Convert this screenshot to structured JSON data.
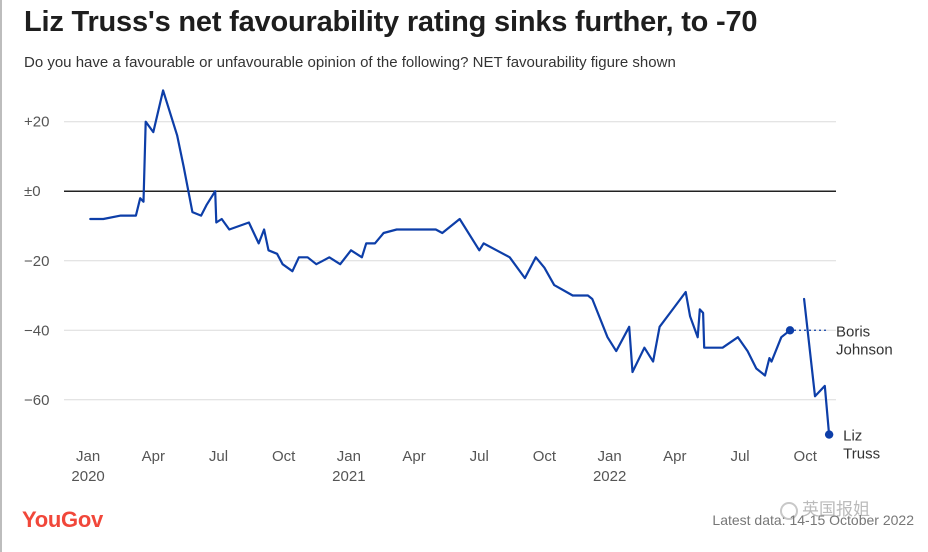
{
  "title": "Liz Truss's net favourability rating sinks further, to -70",
  "subtitle": "Do you have a favourable or unfavourable opinion of the following? NET favourability figure shown",
  "footer": {
    "logo": "YouGov",
    "latest": "Latest data: 14-15 October 2022",
    "watermark": "英国报姐"
  },
  "colors": {
    "series": "#0d3ea8",
    "zero_line": "#222222",
    "grid": "#dcdcdc",
    "brand": "#f1473a"
  },
  "chart_data": {
    "type": "line",
    "title": "Liz Truss's net favourability rating sinks further, to -70",
    "ylim": [
      -73,
      32
    ],
    "yticks": [
      {
        "v": 20,
        "label": "+20"
      },
      {
        "v": 0,
        "label": "±0"
      },
      {
        "v": -20,
        "label": "−20"
      },
      {
        "v": -40,
        "label": "−40"
      },
      {
        "v": -60,
        "label": "−60"
      }
    ],
    "xticks": [
      {
        "m": 0,
        "label": "Jan",
        "year": "2020"
      },
      {
        "m": 3,
        "label": "Apr"
      },
      {
        "m": 6,
        "label": "Jul"
      },
      {
        "m": 9,
        "label": "Oct"
      },
      {
        "m": 12,
        "label": "Jan",
        "year": "2021"
      },
      {
        "m": 15,
        "label": "Apr"
      },
      {
        "m": 18,
        "label": "Jul"
      },
      {
        "m": 21,
        "label": "Oct"
      },
      {
        "m": 24,
        "label": "Jan",
        "year": "2022"
      },
      {
        "m": 27,
        "label": "Apr"
      },
      {
        "m": 30,
        "label": "Jul"
      },
      {
        "m": 33,
        "label": "Oct"
      }
    ],
    "xlim": [
      -1.2,
      34.6
    ],
    "grid": true,
    "series": [
      {
        "name": "Boris Johnson",
        "points": [
          [
            0.1,
            -8
          ],
          [
            0.7,
            -8
          ],
          [
            1.5,
            -7
          ],
          [
            2.2,
            -7
          ],
          [
            2.4,
            -2
          ],
          [
            2.55,
            -3
          ],
          [
            2.65,
            20
          ],
          [
            3.0,
            17
          ],
          [
            3.45,
            29
          ],
          [
            4.1,
            16
          ],
          [
            4.4,
            7
          ],
          [
            4.8,
            -6
          ],
          [
            5.2,
            -7
          ],
          [
            5.45,
            -4
          ],
          [
            5.85,
            0
          ],
          [
            5.9,
            -9
          ],
          [
            6.15,
            -8
          ],
          [
            6.5,
            -11
          ],
          [
            7.4,
            -9
          ],
          [
            7.85,
            -15
          ],
          [
            8.1,
            -11
          ],
          [
            8.3,
            -17
          ],
          [
            8.7,
            -18
          ],
          [
            8.95,
            -21
          ],
          [
            9.4,
            -23
          ],
          [
            9.7,
            -19
          ],
          [
            10.1,
            -19
          ],
          [
            10.5,
            -21
          ],
          [
            10.8,
            -20
          ],
          [
            11.1,
            -19
          ],
          [
            11.6,
            -21
          ],
          [
            12.1,
            -17
          ],
          [
            12.6,
            -19
          ],
          [
            12.8,
            -15
          ],
          [
            13.2,
            -15
          ],
          [
            13.6,
            -12
          ],
          [
            14.2,
            -11
          ],
          [
            15.0,
            -11
          ],
          [
            15.5,
            -11
          ],
          [
            16.0,
            -11
          ],
          [
            16.3,
            -12
          ],
          [
            17.1,
            -8
          ],
          [
            18.0,
            -17
          ],
          [
            18.2,
            -15
          ],
          [
            18.8,
            -17
          ],
          [
            19.4,
            -19
          ],
          [
            20.1,
            -25
          ],
          [
            20.6,
            -19
          ],
          [
            21.0,
            -22
          ],
          [
            21.45,
            -27
          ],
          [
            22.3,
            -30
          ],
          [
            23.0,
            -30
          ],
          [
            23.2,
            -31
          ],
          [
            23.9,
            -42
          ],
          [
            24.3,
            -46
          ],
          [
            24.9,
            -39
          ],
          [
            25.05,
            -52
          ],
          [
            25.6,
            -45
          ],
          [
            26.0,
            -49
          ],
          [
            26.3,
            -39
          ],
          [
            26.9,
            -34
          ],
          [
            27.5,
            -29
          ],
          [
            27.7,
            -36
          ],
          [
            28.05,
            -42
          ],
          [
            28.15,
            -34
          ],
          [
            28.3,
            -35
          ],
          [
            28.35,
            -45
          ],
          [
            29.2,
            -45
          ],
          [
            29.9,
            -42
          ],
          [
            30.35,
            -46
          ],
          [
            30.75,
            -51
          ],
          [
            31.15,
            -53
          ],
          [
            31.35,
            -48
          ],
          [
            31.45,
            -49
          ],
          [
            31.9,
            -42
          ],
          [
            32.3,
            -40
          ]
        ],
        "end_label": [
          "Boris",
          "Johnson"
        ],
        "end_value": -40
      },
      {
        "name": "Liz Truss",
        "points": [
          [
            32.95,
            -31
          ],
          [
            33.45,
            -59
          ],
          [
            33.9,
            -56
          ],
          [
            34.1,
            -70
          ]
        ],
        "end_label": [
          "Liz",
          "Truss"
        ],
        "end_value": -70
      }
    ]
  }
}
